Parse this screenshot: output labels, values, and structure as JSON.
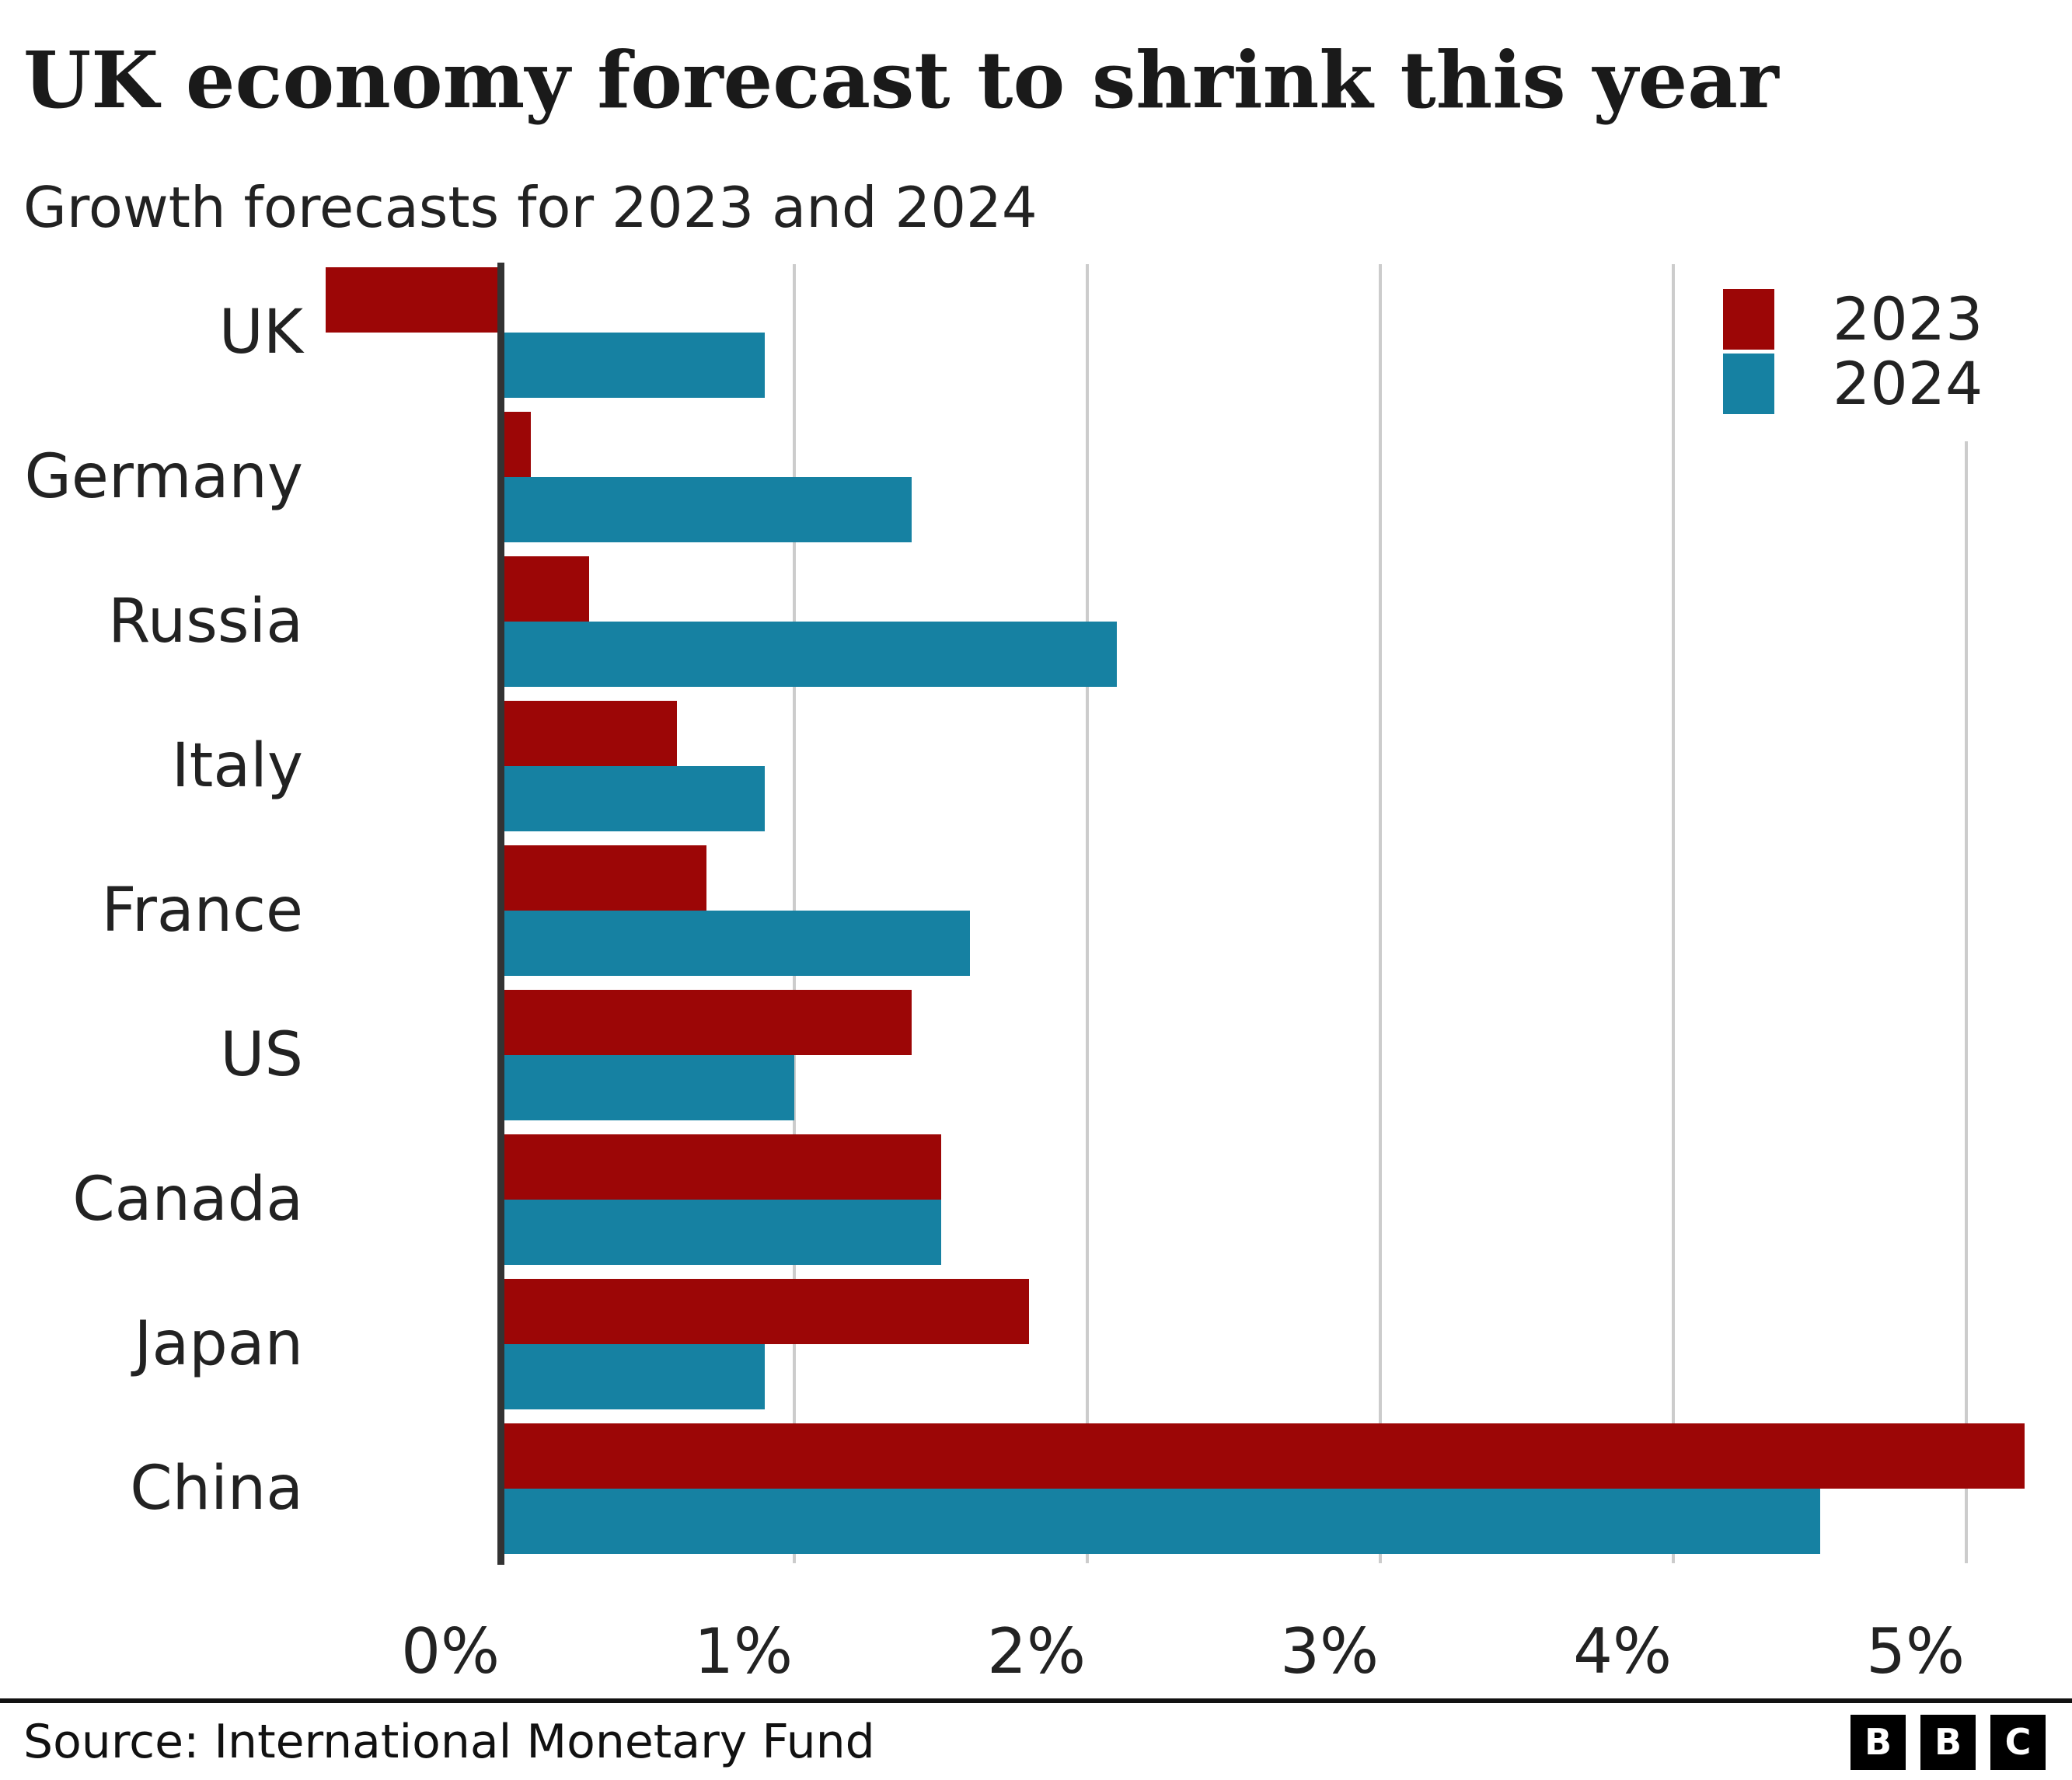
{
  "header": {
    "title": "UK economy forecast to shrink this year",
    "subtitle": "Growth forecasts for 2023 and 2024"
  },
  "colors": {
    "series_2023": "#9c0606",
    "series_2024": "#1681a2",
    "axis_line": "#333333",
    "gridline": "#cccccc",
    "text": "#222222",
    "divider": "#111111",
    "logo_bg": "#000000",
    "logo_text": "#ffffff"
  },
  "chart_data": {
    "type": "bar",
    "orientation": "horizontal",
    "title": "UK economy forecast to shrink this year",
    "subtitle": "Growth forecasts for 2023 and 2024",
    "categories": [
      "UK",
      "Germany",
      "Russia",
      "Italy",
      "France",
      "US",
      "Canada",
      "Japan",
      "China"
    ],
    "series": [
      {
        "name": "2023",
        "color_key": "series_2023",
        "values": [
          -0.6,
          0.1,
          0.3,
          0.6,
          0.7,
          1.4,
          1.5,
          1.8,
          5.2
        ]
      },
      {
        "name": "2024",
        "color_key": "series_2024",
        "values": [
          0.9,
          1.4,
          2.1,
          0.9,
          1.6,
          1.0,
          1.5,
          0.9,
          4.5
        ]
      }
    ],
    "unit": "%",
    "x_ticks": [
      {
        "label": "0%",
        "value": 0
      },
      {
        "label": "1%",
        "value": 1
      },
      {
        "label": "2%",
        "value": 2
      },
      {
        "label": "3%",
        "value": 3
      },
      {
        "label": "4%",
        "value": 4
      },
      {
        "label": "5%",
        "value": 5
      }
    ],
    "x_range": [
      -0.65,
      5.35
    ],
    "grid": true,
    "legend_position": "top-right"
  },
  "legend": {
    "items": [
      {
        "label": "2023",
        "color_key": "series_2023"
      },
      {
        "label": "2024",
        "color_key": "series_2024"
      }
    ]
  },
  "footer": {
    "source": "Source: International Monetary Fund",
    "logo_letters": [
      "B",
      "B",
      "C"
    ]
  }
}
